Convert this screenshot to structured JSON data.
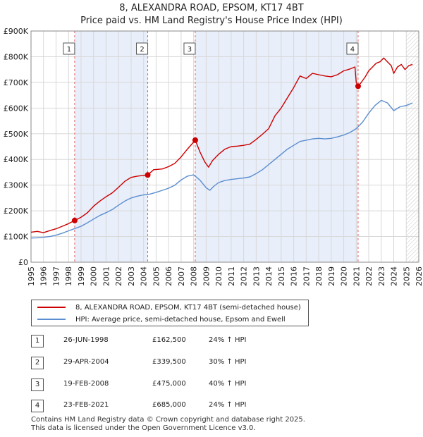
{
  "chart_data": {
    "type": "line",
    "title": "8, ALEXANDRA ROAD, EPSOM, KT17 4BT",
    "subtitle": "Price paid vs. HM Land Registry's House Price Index (HPI)",
    "xlabel": "",
    "ylabel": "",
    "xlim": [
      1995,
      2026
    ],
    "ylim": [
      0,
      900000
    ],
    "x_ticks": [
      "1995",
      "1996",
      "1997",
      "1998",
      "1999",
      "2000",
      "2001",
      "2002",
      "2003",
      "2004",
      "2005",
      "2006",
      "2007",
      "2008",
      "2009",
      "2010",
      "2011",
      "2012",
      "2013",
      "2014",
      "2015",
      "2016",
      "2017",
      "2018",
      "2019",
      "2020",
      "2021",
      "2022",
      "2023",
      "2024",
      "2025",
      "2026"
    ],
    "y_ticks": [
      {
        "value": 0,
        "label": "£0"
      },
      {
        "value": 100000,
        "label": "£100K"
      },
      {
        "value": 200000,
        "label": "£200K"
      },
      {
        "value": 300000,
        "label": "£300K"
      },
      {
        "value": 400000,
        "label": "£400K"
      },
      {
        "value": 500000,
        "label": "£500K"
      },
      {
        "value": 600000,
        "label": "£600K"
      },
      {
        "value": 700000,
        "label": "£700K"
      },
      {
        "value": 800000,
        "label": "£800K"
      },
      {
        "value": 900000,
        "label": "£900K"
      }
    ],
    "grid": true,
    "forecast_start": 2025.0,
    "series": [
      {
        "name": "8, ALEXANDRA ROAD, EPSOM, KT17 4BT (semi-detached house)",
        "color": "#cc0000",
        "x": [
          1995.0,
          1995.5,
          1996.0,
          1996.5,
          1997.0,
          1997.5,
          1998.0,
          1998.49,
          1999.0,
          1999.5,
          2000.0,
          2000.5,
          2001.0,
          2001.5,
          2002.0,
          2002.5,
          2003.0,
          2003.5,
          2004.0,
          2004.33,
          2004.8,
          2005.5,
          2006.0,
          2006.5,
          2007.0,
          2007.5,
          2008.13,
          2008.5,
          2008.9,
          2009.2,
          2009.5,
          2010.0,
          2010.5,
          2011.0,
          2011.5,
          2012.0,
          2012.5,
          2013.0,
          2013.5,
          2014.0,
          2014.5,
          2015.0,
          2015.5,
          2016.0,
          2016.5,
          2017.0,
          2017.5,
          2018.0,
          2018.5,
          2019.0,
          2019.5,
          2020.0,
          2020.5,
          2020.9,
          2021.0,
          2021.15,
          2021.4,
          2021.7,
          2022.0,
          2022.3,
          2022.6,
          2022.9,
          2023.2,
          2023.5,
          2023.8,
          2024.0,
          2024.3,
          2024.6,
          2024.9,
          2025.2,
          2025.5
        ],
        "values": [
          117000,
          120000,
          115000,
          123000,
          130000,
          140000,
          150000,
          162500,
          175000,
          192000,
          218000,
          238000,
          255000,
          270000,
          292000,
          315000,
          330000,
          335000,
          338000,
          339500,
          360000,
          363000,
          372000,
          385000,
          410000,
          440000,
          475000,
          430000,
          390000,
          370000,
          395000,
          420000,
          440000,
          450000,
          452000,
          455000,
          460000,
          478000,
          498000,
          520000,
          570000,
          600000,
          640000,
          680000,
          725000,
          715000,
          735000,
          730000,
          725000,
          722000,
          730000,
          745000,
          752000,
          760000,
          700000,
          685000,
          700000,
          720000,
          745000,
          760000,
          775000,
          780000,
          795000,
          780000,
          765000,
          735000,
          760000,
          770000,
          750000,
          765000,
          770000
        ]
      },
      {
        "name": "HPI: Average price, semi-detached house, Epsom and Ewell",
        "color": "#5b8ed0",
        "x": [
          1995.0,
          1995.5,
          1996.0,
          1996.5,
          1997.0,
          1997.5,
          1998.0,
          1998.5,
          1999.0,
          1999.5,
          2000.0,
          2000.5,
          2001.0,
          2001.5,
          2002.0,
          2002.5,
          2003.0,
          2003.5,
          2004.0,
          2004.5,
          2005.0,
          2005.5,
          2006.0,
          2006.5,
          2007.0,
          2007.5,
          2008.0,
          2008.5,
          2009.0,
          2009.3,
          2009.6,
          2010.0,
          2010.5,
          2011.0,
          2011.5,
          2012.0,
          2012.5,
          2013.0,
          2013.5,
          2014.0,
          2014.5,
          2015.0,
          2015.5,
          2016.0,
          2016.5,
          2017.0,
          2017.5,
          2018.0,
          2018.5,
          2019.0,
          2019.5,
          2020.0,
          2020.5,
          2021.0,
          2021.5,
          2022.0,
          2022.5,
          2023.0,
          2023.5,
          2024.0,
          2024.5,
          2025.0,
          2025.5
        ],
        "values": [
          94000,
          95000,
          97000,
          100000,
          105000,
          113000,
          122000,
          131000,
          140000,
          153000,
          168000,
          182000,
          193000,
          205000,
          222000,
          238000,
          250000,
          257000,
          262000,
          265000,
          272000,
          280000,
          288000,
          300000,
          320000,
          335000,
          340000,
          320000,
          290000,
          280000,
          295000,
          310000,
          318000,
          322000,
          325000,
          328000,
          332000,
          345000,
          360000,
          380000,
          400000,
          420000,
          440000,
          455000,
          470000,
          475000,
          480000,
          482000,
          480000,
          482000,
          488000,
          495000,
          505000,
          520000,
          545000,
          580000,
          610000,
          630000,
          620000,
          590000,
          605000,
          610000,
          620000
        ]
      }
    ],
    "sales": [
      {
        "label": "1",
        "x": 1998.49,
        "value": 162500
      },
      {
        "label": "2",
        "x": 2004.33,
        "value": 339500
      },
      {
        "label": "3",
        "x": 2008.13,
        "value": 475000
      },
      {
        "label": "4",
        "x": 2021.15,
        "value": 685000
      }
    ],
    "shaded_spans": [
      [
        1998.49,
        2004.33
      ],
      [
        2008.13,
        2021.15
      ]
    ]
  },
  "legend": {
    "property_label": "8, ALEXANDRA ROAD, EPSOM, KT17 4BT (semi-detached house)",
    "hpi_label": "HPI: Average price, semi-detached house, Epsom and Ewell",
    "property_color": "#cc0000",
    "hpi_color": "#5b8ed0"
  },
  "transactions": [
    {
      "num": "1",
      "date": "26-JUN-1998",
      "price": "£162,500",
      "hpi": "24% ↑ HPI"
    },
    {
      "num": "2",
      "date": "29-APR-2004",
      "price": "£339,500",
      "hpi": "30% ↑ HPI"
    },
    {
      "num": "3",
      "date": "19-FEB-2008",
      "price": "£475,000",
      "hpi": "40% ↑ HPI"
    },
    {
      "num": "4",
      "date": "23-FEB-2021",
      "price": "£685,000",
      "hpi": "24% ↑ HPI"
    }
  ],
  "footer": {
    "line1": "Contains HM Land Registry data © Crown copyright and database right 2025.",
    "line2": "This data is licensed under the Open Government Licence v3.0."
  }
}
